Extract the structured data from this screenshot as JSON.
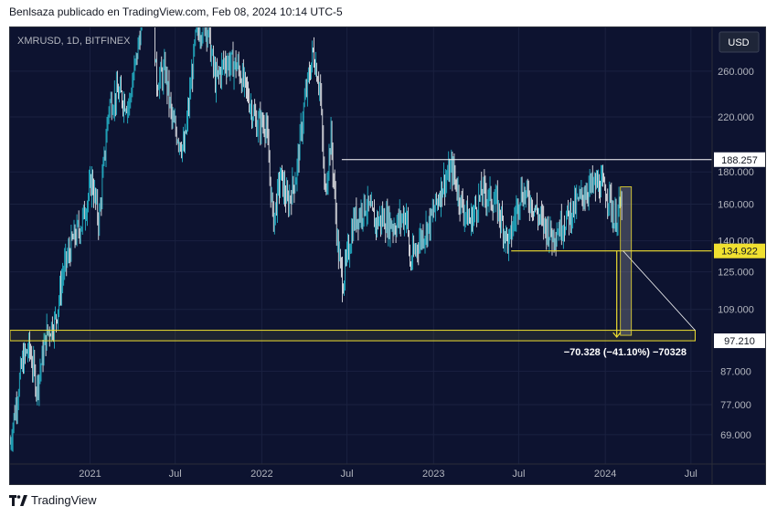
{
  "header": {
    "attribution": "Benlsaza publicado en TradingView.com, Feb 08, 2024 10:14 UTC-5"
  },
  "footer": {
    "brand": "TradingView"
  },
  "chart": {
    "symbol_label": "XMRUSD, 1D, BITFINEX",
    "currency_button": "USD",
    "price_lines": [
      {
        "label": "188.257",
        "value": 188.257,
        "color": "#ffffff",
        "text_color": "#131722"
      },
      {
        "label": "134.922",
        "value": 134.922,
        "color": "#f0e030",
        "text_color": "#131722"
      },
      {
        "label": "97.210",
        "value": 97.21,
        "color": "#ffffff",
        "text_color": "#131722"
      }
    ],
    "measure_label": "−70.328 (−41.10%) −70328",
    "colors": {
      "background": "#0d1330",
      "candles": "#ffffff",
      "accent_candles": "#26c6da",
      "yellow": "#f0e030"
    }
  },
  "chart_data": {
    "type": "candlestick",
    "scale": "log",
    "ylim": [
      62,
      305
    ],
    "yticks": [
      {
        "label": "260.000",
        "value": 260
      },
      {
        "label": "220.000",
        "value": 220
      },
      {
        "label": "180.000",
        "value": 180
      },
      {
        "label": "160.000",
        "value": 160
      },
      {
        "label": "140.000",
        "value": 140
      },
      {
        "label": "125.000",
        "value": 125
      },
      {
        "label": "109.000",
        "value": 109
      },
      {
        "label": "87.000",
        "value": 87
      },
      {
        "label": "77.000",
        "value": 77
      },
      {
        "label": "69.000",
        "value": 69
      }
    ],
    "xlim": [
      "2020-07-15",
      "2024-08-15"
    ],
    "xticks": [
      {
        "label": "2021",
        "date": "2021-01-01"
      },
      {
        "label": "Jul",
        "date": "2021-07-01"
      },
      {
        "label": "2022",
        "date": "2022-01-01"
      },
      {
        "label": "Jul",
        "date": "2022-07-01"
      },
      {
        "label": "2023",
        "date": "2023-01-01"
      },
      {
        "label": "Jul",
        "date": "2023-07-01"
      },
      {
        "label": "2024",
        "date": "2024-01-01"
      },
      {
        "label": "Jul",
        "date": "2024-07-01"
      }
    ],
    "price_path": [
      [
        "2020-07-15",
        67
      ],
      [
        "2020-08-10",
        90
      ],
      [
        "2020-08-25",
        95
      ],
      [
        "2020-09-10",
        82
      ],
      [
        "2020-10-01",
        100
      ],
      [
        "2020-10-20",
        105
      ],
      [
        "2020-11-05",
        125
      ],
      [
        "2020-11-25",
        140
      ],
      [
        "2020-12-15",
        150
      ],
      [
        "2021-01-05",
        175
      ],
      [
        "2021-01-20",
        150
      ],
      [
        "2021-02-10",
        230
      ],
      [
        "2021-03-01",
        240
      ],
      [
        "2021-03-25",
        230
      ],
      [
        "2021-04-15",
        290
      ],
      [
        "2021-05-08",
        430
      ],
      [
        "2021-05-22",
        250
      ],
      [
        "2021-06-10",
        260
      ],
      [
        "2021-06-25",
        215
      ],
      [
        "2021-07-20",
        195
      ],
      [
        "2021-08-15",
        300
      ],
      [
        "2021-09-05",
        310
      ],
      [
        "2021-09-25",
        250
      ],
      [
        "2021-10-15",
        270
      ],
      [
        "2021-11-10",
        265
      ],
      [
        "2021-12-01",
        240
      ],
      [
        "2021-12-20",
        215
      ],
      [
        "2022-01-10",
        215
      ],
      [
        "2022-01-25",
        150
      ],
      [
        "2022-02-10",
        178
      ],
      [
        "2022-02-25",
        160
      ],
      [
        "2022-03-15",
        178
      ],
      [
        "2022-04-01",
        230
      ],
      [
        "2022-04-20",
        280
      ],
      [
        "2022-05-05",
        245
      ],
      [
        "2022-05-15",
        165
      ],
      [
        "2022-05-28",
        205
      ],
      [
        "2022-06-12",
        135
      ],
      [
        "2022-06-22",
        120
      ],
      [
        "2022-07-15",
        150
      ],
      [
        "2022-08-10",
        160
      ],
      [
        "2022-08-30",
        150
      ],
      [
        "2022-09-15",
        152
      ],
      [
        "2022-10-10",
        148
      ],
      [
        "2022-11-05",
        155
      ],
      [
        "2022-11-12",
        128
      ],
      [
        "2022-12-01",
        140
      ],
      [
        "2022-12-25",
        150
      ],
      [
        "2023-01-20",
        172
      ],
      [
        "2023-02-10",
        182
      ],
      [
        "2023-03-01",
        160
      ],
      [
        "2023-03-20",
        150
      ],
      [
        "2023-04-15",
        168
      ],
      [
        "2023-05-15",
        160
      ],
      [
        "2023-06-10",
        138
      ],
      [
        "2023-07-05",
        168
      ],
      [
        "2023-07-25",
        163
      ],
      [
        "2023-08-20",
        150
      ],
      [
        "2023-09-10",
        143
      ],
      [
        "2023-10-05",
        150
      ],
      [
        "2023-11-01",
        160
      ],
      [
        "2023-11-25",
        170
      ],
      [
        "2023-12-20",
        172
      ],
      [
        "2024-01-10",
        165
      ],
      [
        "2024-01-20",
        150
      ],
      [
        "2024-02-06",
        162
      ]
    ],
    "drawings": {
      "resistance": {
        "value": 188.257,
        "from": "2022-06-20"
      },
      "support": {
        "value": 134.922,
        "from": "2023-06-15"
      },
      "target_zone": {
        "low": 97.21,
        "high": 101,
        "from": "2020-07-15",
        "to": "2024-07-10"
      },
      "projection": {
        "from_date": "2024-02-08",
        "from_value": 134.922,
        "to_date": "2024-07-10",
        "to_value": 101
      }
    }
  }
}
